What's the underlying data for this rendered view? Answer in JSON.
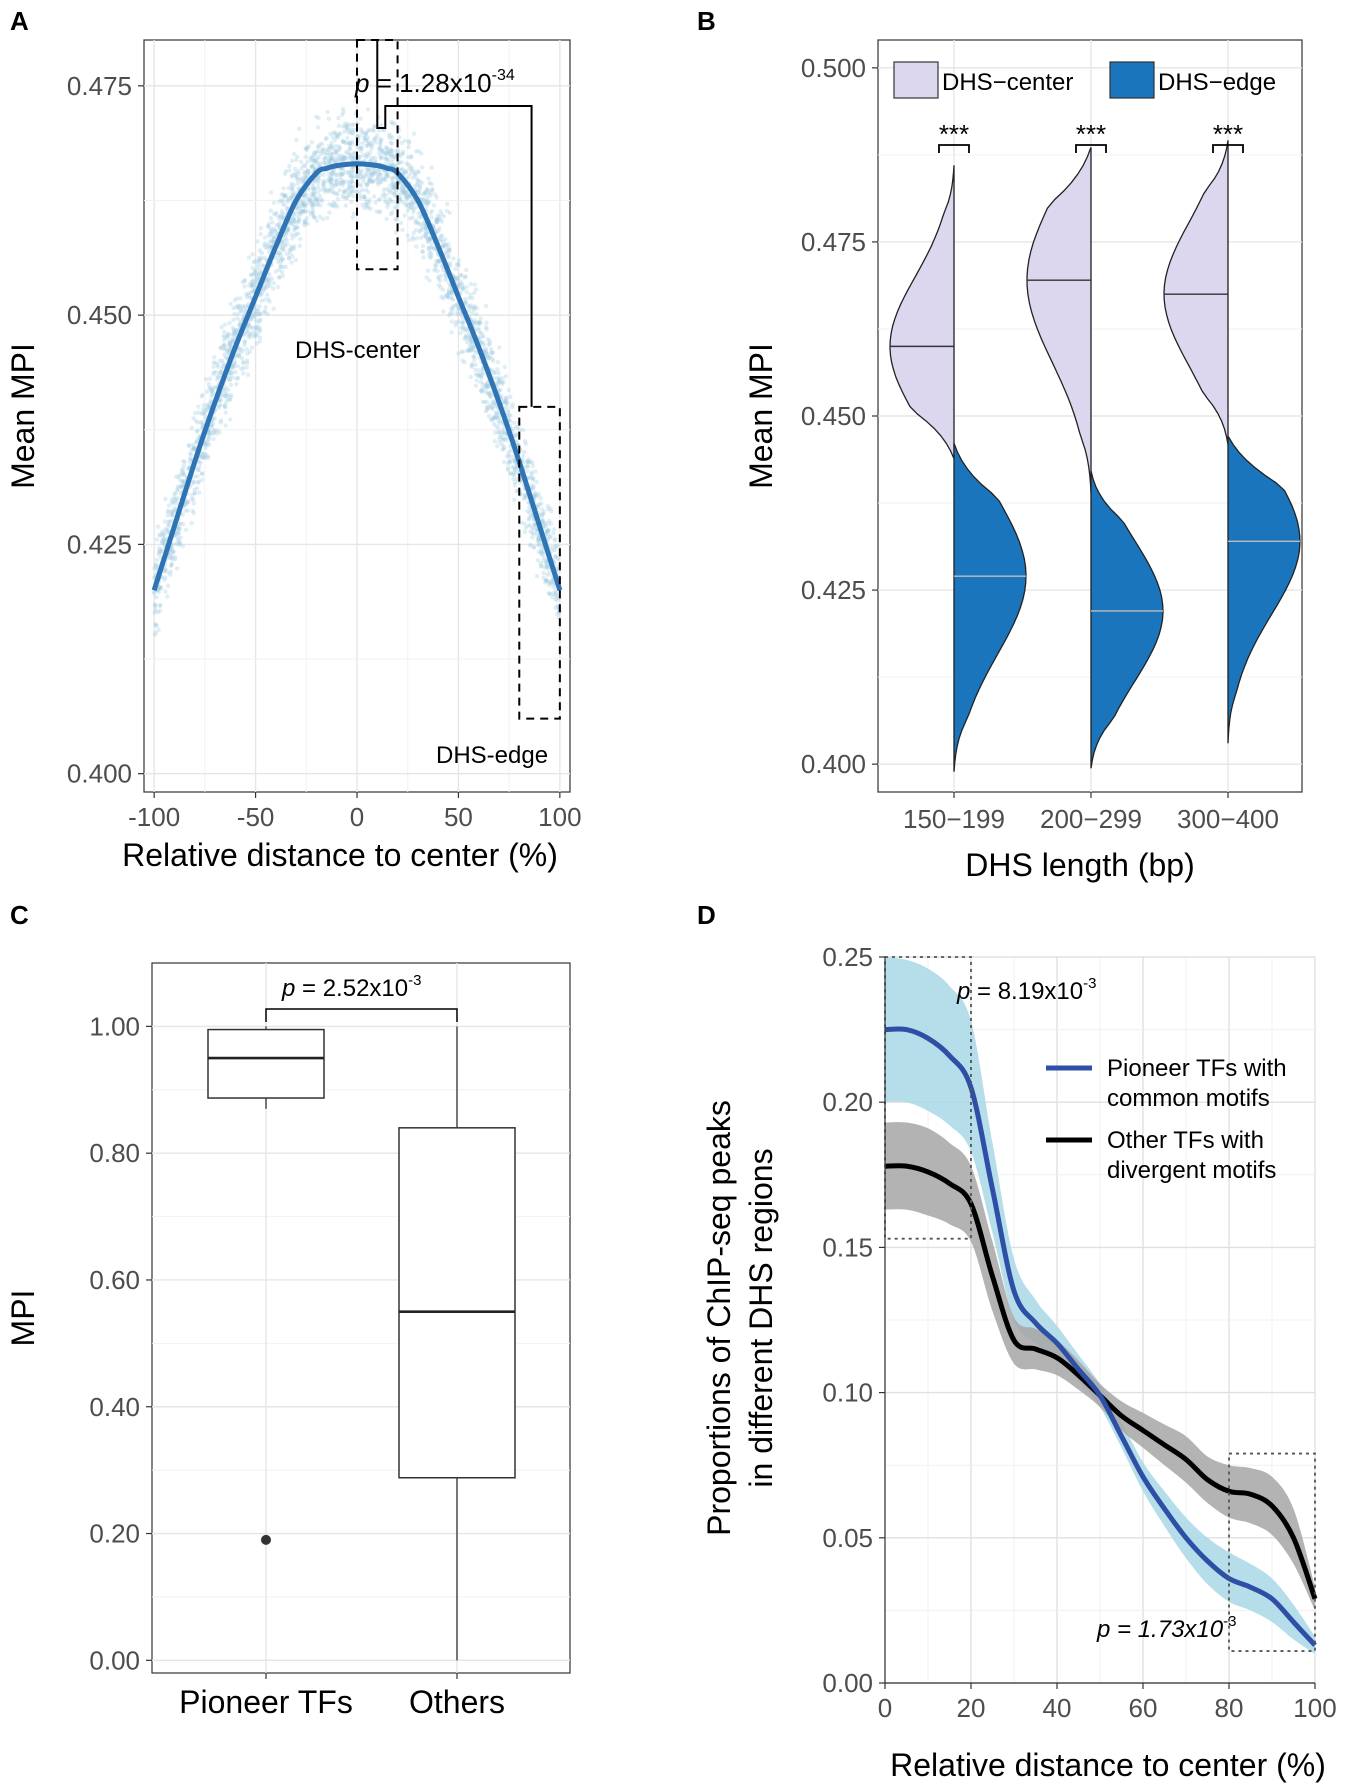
{
  "chart_data": [
    {
      "panel": "A",
      "type": "scatter",
      "xlabel": "Relative distance to center (%)",
      "ylabel": "Mean MPI",
      "xlim": [
        -105,
        105
      ],
      "ylim": [
        0.398,
        0.48
      ],
      "xticks": [
        "-100",
        "-50",
        "0",
        "50",
        "100"
      ],
      "xtick_values": [
        -100,
        -50,
        0,
        50,
        100
      ],
      "yticks": [
        "0.400",
        "0.425",
        "0.450",
        "0.475"
      ],
      "ytick_values": [
        0.4,
        0.425,
        0.45,
        0.475
      ],
      "grid": true,
      "points_color": "#9ecae1",
      "trend": {
        "color": "#2f74b5",
        "x": [
          -100,
          -90,
          -80,
          -70,
          -60,
          -50,
          -40,
          -30,
          -20,
          -15,
          -10,
          0,
          10,
          15,
          20,
          30,
          40,
          50,
          60,
          70,
          80,
          90,
          100
        ],
        "y": [
          0.42,
          0.427,
          0.434,
          0.4405,
          0.4465,
          0.452,
          0.4575,
          0.4625,
          0.4655,
          0.466,
          0.4663,
          0.4665,
          0.4663,
          0.466,
          0.4655,
          0.4625,
          0.4575,
          0.452,
          0.4465,
          0.4405,
          0.434,
          0.427,
          0.42
        ]
      },
      "center_box": {
        "x": [
          0,
          20
        ],
        "y": [
          0.455,
          0.48
        ]
      },
      "edge_box": {
        "x": [
          80,
          100
        ],
        "y": [
          0.406,
          0.44
        ]
      },
      "p_prefix": "p",
      "p_value": " = 1.28x10",
      "p_exp": "-34",
      "label_center": "DHS-center",
      "label_edge": "DHS-edge"
    },
    {
      "panel": "B",
      "type": "violin",
      "xlabel": "DHS length (bp)",
      "ylabel": "Mean MPI",
      "ylim": [
        0.396,
        0.504
      ],
      "categories": [
        "150−199",
        "200−299",
        "300−400"
      ],
      "yticks": [
        "0.400",
        "0.425",
        "0.450",
        "0.475",
        "0.500"
      ],
      "ytick_values": [
        0.4,
        0.425,
        0.45,
        0.475,
        0.5
      ],
      "grid": true,
      "series": [
        {
          "name": "DHS−center",
          "color": "#dcd6ee"
        },
        {
          "name": "DHS−edge",
          "color": "#1a75bc"
        }
      ],
      "significance": [
        "***",
        "***",
        "***"
      ],
      "center": [
        {
          "median": 0.46,
          "range": [
            0.444,
            0.486
          ],
          "mode": 0.46
        },
        {
          "median": 0.4695,
          "range": [
            0.439,
            0.4885
          ],
          "mode": 0.4695
        },
        {
          "median": 0.4675,
          "range": [
            0.446,
            0.4895
          ],
          "mode": 0.4675
        }
      ],
      "edge": [
        {
          "median": 0.427,
          "range": [
            0.399,
            0.446
          ],
          "mode": 0.427
        },
        {
          "median": 0.422,
          "range": [
            0.3995,
            0.442
          ],
          "mode": 0.422
        },
        {
          "median": 0.432,
          "range": [
            0.403,
            0.447
          ],
          "mode": 0.432
        }
      ],
      "legend": "top"
    },
    {
      "panel": "C",
      "type": "box",
      "xlabel": "",
      "ylabel": "MPI",
      "ylim": [
        -0.02,
        1.1
      ],
      "categories": [
        "Pioneer TFs",
        "Others"
      ],
      "yticks": [
        "0.00",
        "0.20",
        "0.40",
        "0.60",
        "0.80",
        "1.00"
      ],
      "ytick_values": [
        0,
        0.2,
        0.4,
        0.6,
        0.8,
        1.0
      ],
      "grid": true,
      "boxes": [
        {
          "min": 0.87,
          "q1": 0.887,
          "median": 0.95,
          "q3": 0.995,
          "max": 1.0,
          "outliers": [
            0.19
          ]
        },
        {
          "min": 0.0,
          "q1": 0.288,
          "median": 0.55,
          "q3": 0.84,
          "max": 1.0,
          "outliers": []
        }
      ],
      "p_prefix": "p",
      "p_value": " = 2.52x10",
      "p_exp": "-3"
    },
    {
      "panel": "D",
      "type": "line",
      "xlabel": "Relative distance to center (%)",
      "ylabel_line1": "Proportions of ChIP-seq peaks",
      "ylabel_line2": "in different DHS regions",
      "xlim": [
        0,
        100
      ],
      "ylim": [
        0,
        0.25
      ],
      "xticks": [
        "0",
        "20",
        "40",
        "60",
        "80",
        "100"
      ],
      "xtick_values": [
        0,
        20,
        40,
        60,
        80,
        100
      ],
      "yticks": [
        "0.00",
        "0.05",
        "0.10",
        "0.15",
        "0.20",
        "0.25"
      ],
      "ytick_values": [
        0,
        0.05,
        0.1,
        0.15,
        0.2,
        0.25
      ],
      "grid": true,
      "series": [
        {
          "name_line1": "Pioneer TFs with",
          "name_line2": "common motifs",
          "color": "#2e4fa6",
          "band_color": "#a8d8e6",
          "x": [
            0,
            5,
            10,
            15,
            20,
            25,
            30,
            35,
            40,
            45,
            50,
            55,
            60,
            65,
            70,
            75,
            80,
            85,
            90,
            95,
            100
          ],
          "y": [
            0.225,
            0.225,
            0.222,
            0.216,
            0.205,
            0.17,
            0.135,
            0.124,
            0.117,
            0.108,
            0.099,
            0.085,
            0.071,
            0.06,
            0.05,
            0.042,
            0.036,
            0.033,
            0.029,
            0.021,
            0.013
          ],
          "lo": [
            0.2,
            0.2,
            0.197,
            0.192,
            0.183,
            0.155,
            0.125,
            0.117,
            0.112,
            0.104,
            0.095,
            0.081,
            0.066,
            0.054,
            0.043,
            0.034,
            0.028,
            0.025,
            0.021,
            0.015,
            0.01
          ],
          "hi": [
            0.25,
            0.249,
            0.246,
            0.24,
            0.228,
            0.186,
            0.146,
            0.132,
            0.123,
            0.113,
            0.103,
            0.09,
            0.076,
            0.066,
            0.057,
            0.05,
            0.045,
            0.041,
            0.036,
            0.027,
            0.016
          ]
        },
        {
          "name_line1": "Other TFs with",
          "name_line2": "divergent motifs",
          "color": "#000000",
          "band_color": "#a6a6a6",
          "x": [
            0,
            5,
            10,
            15,
            20,
            25,
            30,
            35,
            40,
            45,
            50,
            55,
            60,
            65,
            70,
            75,
            80,
            85,
            90,
            95,
            100
          ],
          "y": [
            0.178,
            0.178,
            0.176,
            0.172,
            0.165,
            0.14,
            0.118,
            0.115,
            0.112,
            0.106,
            0.099,
            0.092,
            0.087,
            0.082,
            0.077,
            0.07,
            0.066,
            0.065,
            0.061,
            0.05,
            0.029
          ],
          "lo": [
            0.163,
            0.163,
            0.161,
            0.158,
            0.152,
            0.128,
            0.11,
            0.108,
            0.106,
            0.101,
            0.095,
            0.087,
            0.081,
            0.075,
            0.069,
            0.062,
            0.057,
            0.055,
            0.051,
            0.041,
            0.025
          ],
          "hi": [
            0.193,
            0.193,
            0.191,
            0.186,
            0.178,
            0.152,
            0.126,
            0.122,
            0.118,
            0.111,
            0.103,
            0.097,
            0.093,
            0.089,
            0.085,
            0.078,
            0.075,
            0.074,
            0.071,
            0.06,
            0.033
          ]
        }
      ],
      "top_box": {
        "x": [
          0,
          20
        ],
        "y": [
          0.153,
          0.25
        ]
      },
      "bottom_box": {
        "x": [
          80,
          100
        ],
        "y": [
          0.011,
          0.079
        ]
      },
      "p_top_prefix": "p",
      "p_top_value": " = 8.19x10",
      "p_top_exp": "-3",
      "p_bottom_prefix": "p",
      "p_bottom_value": " = 1.73x10",
      "p_bottom_exp": "-3",
      "legend": "right"
    }
  ]
}
